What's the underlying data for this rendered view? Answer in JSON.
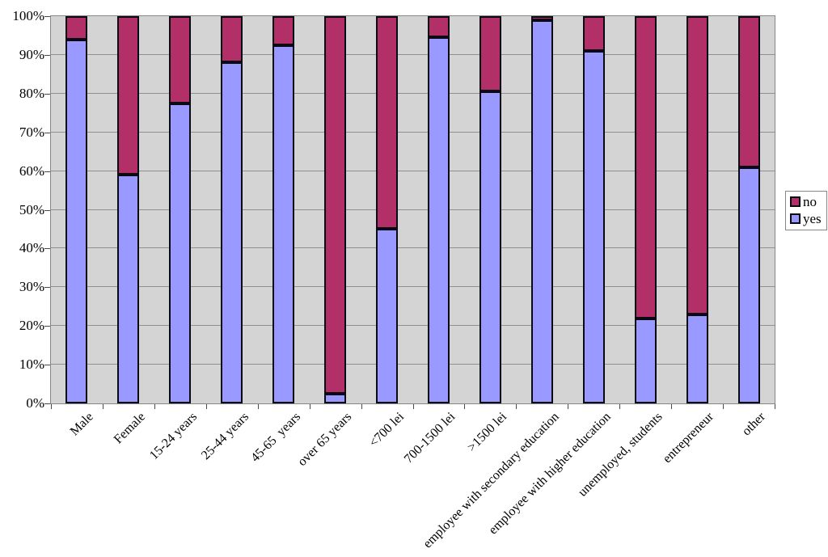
{
  "chart_data": {
    "type": "bar",
    "variant": "100-percent-stacked-column",
    "title": "",
    "xlabel": "",
    "ylabel": "",
    "ylim": [
      0,
      100
    ],
    "grid": true,
    "plot_background": "#d4d4d4",
    "gridline_color": "#8f8f8f",
    "bar_border_color": "#0a0a12",
    "ytick_labels": [
      "0%",
      "10%",
      "20%",
      "30%",
      "40%",
      "50%",
      "60%",
      "70%",
      "80%",
      "90%",
      "100%"
    ],
    "categories": [
      "Male",
      "Female",
      "15-24 years",
      "25-44 years",
      "45-65  years",
      "over 65 years",
      "<700 lei",
      "700-1500 lei",
      ">1500 lei",
      "employee with secondary education",
      "employee with higher education",
      "unemployed, students",
      "entrepreneur",
      "other"
    ],
    "series": [
      {
        "name": "no",
        "color": "#b23067",
        "values": [
          6,
          41,
          22.5,
          12,
          7.5,
          97.5,
          55,
          5.5,
          19.5,
          1,
          9,
          78,
          77,
          39
        ]
      },
      {
        "name": "yes",
        "color": "#9999ff",
        "values": [
          94,
          59,
          77.5,
          88,
          92.5,
          2.5,
          45,
          94.5,
          80.5,
          99,
          91,
          22,
          23,
          61
        ]
      }
    ],
    "legend": {
      "position": "right",
      "entries": [
        {
          "label": "no",
          "color": "#b23067"
        },
        {
          "label": "yes",
          "color": "#9999ff"
        }
      ]
    }
  }
}
